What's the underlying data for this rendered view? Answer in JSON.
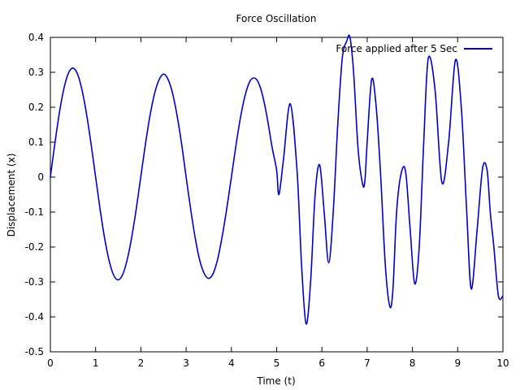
{
  "chart_data": {
    "type": "line",
    "title": "Force Oscillation",
    "xlabel": "Time (t)",
    "ylabel": "Displacement (x)",
    "xlim": [
      0,
      10
    ],
    "ylim": [
      -0.5,
      0.4
    ],
    "xticks": [
      "0",
      "1",
      "2",
      "3",
      "4",
      "5",
      "6",
      "7",
      "8",
      "9",
      "10"
    ],
    "yticks": [
      "-0.5",
      "-0.4",
      "-0.3",
      "-0.2",
      "-0.1",
      "0",
      "0.1",
      "0.2",
      "0.3",
      "0.4"
    ],
    "legend_position": "top-right",
    "grid": false,
    "series": [
      {
        "name": "Force applied after 5 Sec",
        "color": "#0000cc",
        "x": [
          0,
          0.1,
          0.2,
          0.3,
          0.4,
          0.5,
          0.6,
          0.7,
          0.8,
          0.9,
          1.0,
          1.1,
          1.2,
          1.3,
          1.4,
          1.5,
          1.6,
          1.7,
          1.8,
          1.9,
          2.0,
          2.1,
          2.2,
          2.3,
          2.4,
          2.5,
          2.6,
          2.7,
          2.8,
          2.9,
          3.0,
          3.1,
          3.2,
          3.3,
          3.4,
          3.5,
          3.6,
          3.7,
          3.8,
          3.9,
          4.0,
          4.1,
          4.2,
          4.3,
          4.4,
          4.5,
          4.6,
          4.7,
          4.8,
          4.9,
          5.0,
          5.05,
          5.15,
          5.3,
          5.45,
          5.55,
          5.65,
          5.75,
          5.85,
          5.95,
          6.05,
          6.15,
          6.25,
          6.35,
          6.45,
          6.55,
          6.62,
          6.7,
          6.8,
          6.9,
          6.95,
          7.0,
          7.1,
          7.2,
          7.3,
          7.4,
          7.5,
          7.57,
          7.65,
          7.75,
          7.85,
          7.95,
          8.05,
          8.15,
          8.25,
          8.35,
          8.5,
          8.65,
          8.8,
          8.95,
          9.08,
          9.2,
          9.3,
          9.43,
          9.55,
          9.65,
          9.72,
          9.8,
          9.9,
          10.0
        ],
        "values": [
          0.0,
          0.097,
          0.185,
          0.254,
          0.298,
          0.312,
          0.295,
          0.249,
          0.18,
          0.094,
          0.0,
          -0.093,
          -0.176,
          -0.24,
          -0.281,
          -0.294,
          -0.278,
          -0.235,
          -0.17,
          -0.089,
          0.003,
          0.094,
          0.175,
          0.238,
          0.278,
          0.295,
          0.28,
          0.24,
          0.176,
          0.095,
          0.0,
          -0.092,
          -0.174,
          -0.238,
          -0.276,
          -0.29,
          -0.275,
          -0.233,
          -0.167,
          -0.088,
          0.0,
          0.09,
          0.17,
          0.232,
          0.272,
          0.284,
          0.27,
          0.228,
          0.163,
          0.085,
          0.02,
          -0.05,
          0.05,
          0.21,
          0.02,
          -0.25,
          -0.42,
          -0.3,
          -0.05,
          0.035,
          -0.1,
          -0.245,
          -0.1,
          0.15,
          0.34,
          0.39,
          0.4,
          0.3,
          0.08,
          -0.02,
          -0.01,
          0.1,
          0.28,
          0.2,
          0.0,
          -0.25,
          -0.37,
          -0.32,
          -0.1,
          0.01,
          0.015,
          -0.15,
          -0.305,
          -0.2,
          0.1,
          0.34,
          0.25,
          -0.015,
          0.1,
          0.335,
          0.2,
          -0.1,
          -0.32,
          -0.15,
          0.025,
          0.02,
          -0.1,
          -0.2,
          -0.34,
          -0.34
        ]
      }
    ]
  }
}
